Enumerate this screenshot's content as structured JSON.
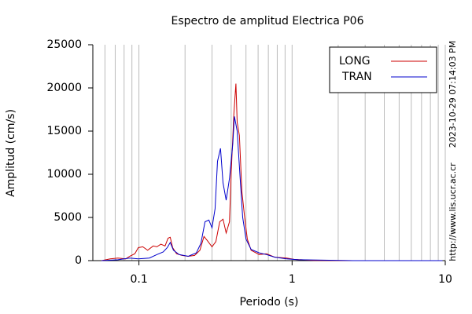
{
  "chart_data": {
    "type": "line",
    "title": "Espectro de amplitud Electrica P06",
    "x_label": "Periodo (s)",
    "y_label": "Amplitud (cm/s)",
    "side_texts": [
      "2023-10-29 07:14:03 PM",
      "http://www.lis.ucr.ac.cr"
    ],
    "x_scale": "log",
    "xlim": [
      0.05,
      10
    ],
    "xticks": [
      0.1,
      1,
      10
    ],
    "x_minor_grid": [
      0.05,
      0.06,
      0.07,
      0.08,
      0.09,
      0.2,
      0.3,
      0.4,
      0.5,
      0.6,
      0.7,
      0.8,
      0.9,
      2,
      3,
      4,
      5,
      6,
      7,
      8,
      9
    ],
    "ylim": [
      0,
      25000
    ],
    "yticks": [
      0,
      5000,
      10000,
      15000,
      20000,
      25000
    ],
    "grid": true,
    "legend": "upper right",
    "series": [
      {
        "name": "LONG",
        "color": "#cc0000",
        "x": [
          0.057,
          0.065,
          0.073,
          0.082,
          0.087,
          0.094,
          0.099,
          0.106,
          0.114,
          0.124,
          0.131,
          0.139,
          0.148,
          0.155,
          0.16,
          0.166,
          0.176,
          0.191,
          0.21,
          0.231,
          0.25,
          0.266,
          0.28,
          0.3,
          0.318,
          0.337,
          0.354,
          0.371,
          0.39,
          0.4,
          0.417,
          0.43,
          0.438,
          0.453,
          0.47,
          0.49,
          0.51,
          0.54,
          0.61,
          0.68,
          0.77,
          0.92,
          1.03,
          1.39,
          2.5,
          9.6
        ],
        "values": [
          0,
          200,
          300,
          200,
          500,
          800,
          1500,
          1600,
          1200,
          1700,
          1600,
          1900,
          1700,
          2600,
          2700,
          1500,
          800,
          600,
          500,
          600,
          1200,
          2800,
          2300,
          1600,
          2200,
          4500,
          4800,
          3200,
          4500,
          10000,
          17000,
          20500,
          16000,
          14500,
          8000,
          5000,
          2500,
          1200,
          700,
          800,
          400,
          300,
          150,
          30,
          0,
          0
        ]
      },
      {
        "name": "TRAN",
        "color": "#0000cc",
        "x": [
          0.057,
          0.073,
          0.087,
          0.099,
          0.117,
          0.131,
          0.144,
          0.153,
          0.16,
          0.168,
          0.183,
          0.21,
          0.237,
          0.254,
          0.27,
          0.286,
          0.3,
          0.314,
          0.326,
          0.341,
          0.354,
          0.371,
          0.39,
          0.41,
          0.42,
          0.438,
          0.458,
          0.476,
          0.5,
          0.54,
          0.61,
          0.68,
          0.77,
          0.92,
          1.1,
          2.5,
          9.6
        ],
        "values": [
          0,
          100,
          300,
          200,
          300,
          700,
          1000,
          1500,
          2100,
          1200,
          700,
          500,
          900,
          2000,
          4500,
          4700,
          3800,
          6000,
          11500,
          13000,
          9000,
          7000,
          9500,
          13500,
          16700,
          15000,
          9500,
          5000,
          2500,
          1300,
          900,
          700,
          400,
          200,
          100,
          0,
          0
        ]
      }
    ]
  }
}
